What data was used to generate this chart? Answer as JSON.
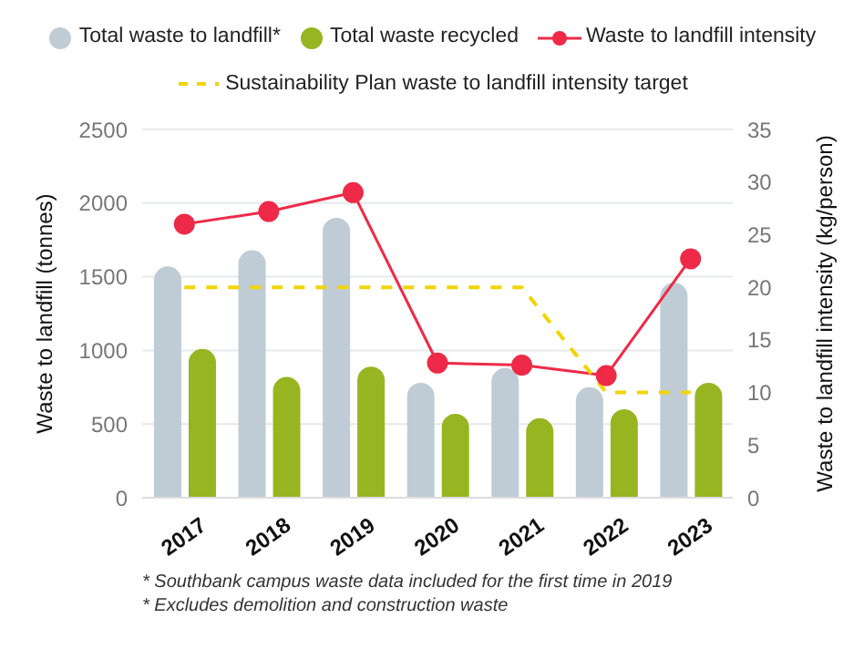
{
  "chart_data": {
    "type": "bar",
    "categories": [
      "2017",
      "2018",
      "2019",
      "2020",
      "2021",
      "2022",
      "2023"
    ],
    "ylabel": "Waste to landfill (tonnes)",
    "y2label": "Waste to landfill intensity (kg/person)",
    "ylim": [
      0,
      2500
    ],
    "yticks": [
      0,
      500,
      1000,
      1500,
      2000,
      2500
    ],
    "y2lim": [
      0,
      35
    ],
    "y2ticks": [
      0,
      5,
      10,
      15,
      20,
      25,
      30,
      35
    ],
    "grid": "y",
    "legend": "top",
    "series": [
      {
        "name": "Total waste to landfill*",
        "color": "#bfccd5",
        "values": [
          1570,
          1680,
          1900,
          780,
          880,
          750,
          1460
        ]
      },
      {
        "name": "Total waste recycled",
        "color": "#97b521",
        "values": [
          1010,
          820,
          890,
          570,
          540,
          600,
          780
        ]
      },
      {
        "name": "Waste to landfill intensity",
        "type": "line",
        "axis": "y2",
        "color": "#ee2a48",
        "marker": "circle",
        "values": [
          26,
          27.2,
          29,
          12.8,
          12.6,
          11.6,
          22.7
        ]
      },
      {
        "name": "Sustainability Plan waste to landfill intensity target",
        "type": "line",
        "axis": "y2",
        "color": "#f2d400",
        "line_style": "dashed",
        "marker": "none",
        "values": [
          20,
          20,
          20,
          20,
          20,
          10,
          10
        ]
      }
    ],
    "annotations": [
      "* Southbank campus waste data included for the first time in 2019",
      "* Excludes demolition and construction waste"
    ]
  }
}
